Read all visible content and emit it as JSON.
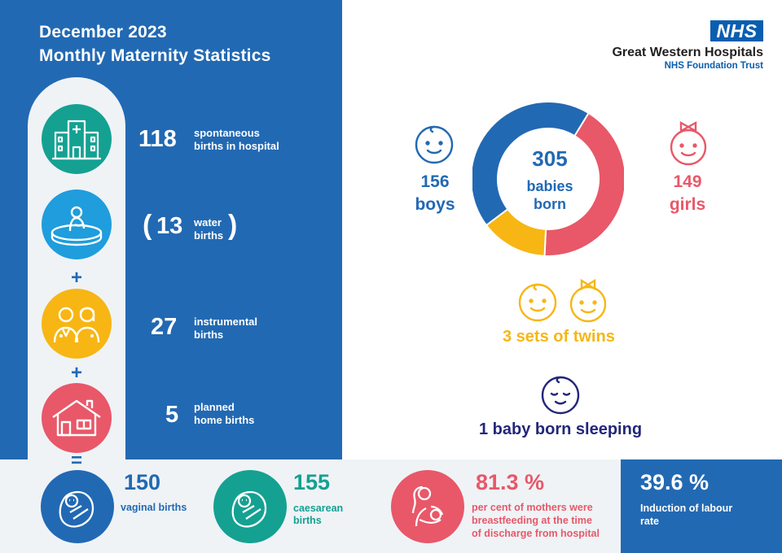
{
  "header": {
    "date": "December 2023",
    "title": "Monthly Maternity Statistics"
  },
  "brand": {
    "logo": "NHS",
    "org_name": "Great Western Hospitals",
    "org_sub": "NHS Foundation Trust"
  },
  "left_stats": {
    "spontaneous": {
      "value": "118",
      "label_1": "spontaneous",
      "label_2": "births in hospital",
      "icon": "hospital-icon"
    },
    "water": {
      "open": "(",
      "value": "13",
      "label_1": "water",
      "label_2": "births",
      "close": ")",
      "icon": "water-birth-icon"
    },
    "instrumental": {
      "value": "27",
      "label_1": "instrumental",
      "label_2": "births",
      "icon": "clinicians-icon"
    },
    "home": {
      "value": "5",
      "label_1": "planned",
      "label_2": "home births",
      "icon": "house-icon"
    },
    "ops": {
      "plus": "+",
      "equals": "="
    }
  },
  "donut": {
    "total": "305",
    "total_label_1": "babies",
    "total_label_2": "born",
    "boys_value": "156",
    "boys_label": "boys",
    "girls_value": "149",
    "girls_label": "girls",
    "twins": "3 sets of twins",
    "sleeping": "1 baby born sleeping",
    "segments": [
      {
        "name": "boys",
        "share": 0.44,
        "color": "#2269b3"
      },
      {
        "name": "girls",
        "share": 0.42,
        "color": "#e85869"
      },
      {
        "name": "twins",
        "share": 0.14,
        "color": "#f7b614"
      }
    ]
  },
  "bottom": {
    "vaginal": {
      "value": "150",
      "label": "vaginal births",
      "icon": "swaddled-baby-icon"
    },
    "caesarean": {
      "value": "155",
      "label_1": "caesarean",
      "label_2": "births",
      "icon": "swaddled-baby-icon"
    },
    "breastfeeding": {
      "value": "81.3 %",
      "label_1": "per cent of mothers were",
      "label_2": "breastfeeding at the time",
      "label_3": "of discharge from hospital",
      "icon": "breastfeeding-icon"
    },
    "induction": {
      "value": "39.6 %",
      "label_1": "Induction of labour",
      "label_2": "rate"
    }
  },
  "colors": {
    "blue": "#2269b3",
    "green": "#14a192",
    "light_blue": "#1f9ddc",
    "yellow": "#f7b614",
    "pink": "#e85869",
    "navy": "#23277a",
    "band": "#eff3f6"
  }
}
